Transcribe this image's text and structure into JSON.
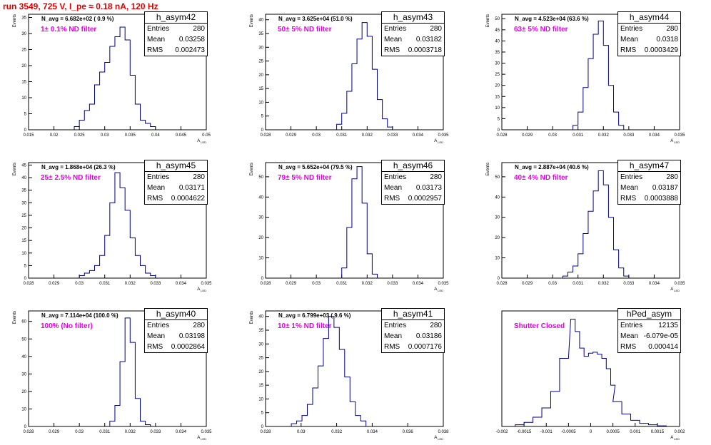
{
  "title": "run 3549,   725 V, I_pe ≈ 0.18 nA, 120 Hz",
  "chart_data": [
    {
      "type": "histogram",
      "name": "h_asym42",
      "stats": {
        "entries": "280",
        "mean": "0.03258",
        "rms": "0.002473"
      },
      "stat_labels": {
        "entries": "Entries",
        "mean": "Mean",
        "rms": "RMS"
      },
      "navg_label": "N_avg = 6.682e+02 ( 0.9 %)",
      "filter_label": "1± 0.1% ND filter",
      "xlabel": "A_LED",
      "ylabel": "Events",
      "xlim": [
        0.015,
        0.05
      ],
      "ylim": [
        0,
        36
      ],
      "xticks": [
        "0.015",
        "0.02",
        "0.025",
        "0.03",
        "0.035",
        "0.04",
        "0.045",
        "0.05"
      ],
      "yticks": [
        "0",
        "5",
        "10",
        "15",
        "20",
        "25",
        "30",
        "35"
      ],
      "bins": [
        0.0245,
        0.0255,
        0.0265,
        0.0275,
        0.0285,
        0.0295,
        0.0305,
        0.0315,
        0.0325,
        0.0335,
        0.0345,
        0.0355,
        0.0365,
        0.0375,
        0.0385,
        0.0395
      ],
      "counts": [
        1,
        3,
        6,
        8,
        14,
        18,
        21,
        26,
        29,
        32,
        28,
        17,
        8,
        3,
        2,
        1
      ]
    },
    {
      "type": "histogram",
      "name": "h_asym43",
      "stats": {
        "entries": "280",
        "mean": "0.03182",
        "rms": "0.0003718"
      },
      "stat_labels": {
        "entries": "Entries",
        "mean": "Mean",
        "rms": "RMS"
      },
      "navg_label": "N_avg = 3.625e+04 (51.0 %)",
      "filter_label": "50± 5% ND filter",
      "xlabel": "A_LED",
      "ylabel": "Events",
      "xlim": [
        0.028,
        0.035
      ],
      "ylim": [
        0,
        42
      ],
      "xticks": [
        "0.028",
        "0.029",
        "0.03",
        "0.031",
        "0.032",
        "0.033",
        "0.034",
        "0.035"
      ],
      "yticks": [
        "0",
        "5",
        "10",
        "15",
        "20",
        "25",
        "30",
        "35",
        "40"
      ],
      "bins": [
        0.0309,
        0.0311,
        0.0313,
        0.0315,
        0.0317,
        0.0319,
        0.0321,
        0.0323,
        0.0325,
        0.0327,
        0.0329
      ],
      "counts": [
        2,
        6,
        14,
        24,
        33,
        39,
        34,
        22,
        11,
        4,
        1
      ]
    },
    {
      "type": "histogram",
      "name": "h_asym44",
      "stats": {
        "entries": "280",
        "mean": "0.0318",
        "rms": "0.0003429"
      },
      "stat_labels": {
        "entries": "Entries",
        "mean": "Mean",
        "rms": "RMS"
      },
      "navg_label": "N_avg = 4.523e+04 (63.6 %)",
      "filter_label": "63± 5% ND filter",
      "xlabel": "A_LED",
      "ylabel": "Events",
      "xlim": [
        0.028,
        0.035
      ],
      "ylim": [
        0,
        52
      ],
      "xticks": [
        "0.028",
        "0.029",
        "0.03",
        "0.031",
        "0.032",
        "0.033",
        "0.034",
        "0.035"
      ],
      "yticks": [
        "0",
        "5",
        "10",
        "15",
        "20",
        "25",
        "30",
        "35",
        "40",
        "45",
        "50"
      ],
      "bins": [
        0.0309,
        0.0311,
        0.0313,
        0.0315,
        0.0317,
        0.0319,
        0.0321,
        0.0323,
        0.0325,
        0.0327
      ],
      "counts": [
        2,
        8,
        19,
        32,
        43,
        49,
        38,
        20,
        8,
        2
      ]
    },
    {
      "type": "histogram",
      "name": "h_asym45",
      "stats": {
        "entries": "280",
        "mean": "0.03171",
        "rms": "0.0004622"
      },
      "stat_labels": {
        "entries": "Entries",
        "mean": "Mean",
        "rms": "RMS"
      },
      "navg_label": "N_avg = 1.868e+04 (26.3 %)",
      "filter_label": "25± 2.5% ND filter",
      "xlabel": "A_LED",
      "ylabel": "Events",
      "xlim": [
        0.028,
        0.035
      ],
      "ylim": [
        0,
        46
      ],
      "xticks": [
        "0.028",
        "0.029",
        "0.03",
        "0.031",
        "0.032",
        "0.033",
        "0.034",
        "0.035"
      ],
      "yticks": [
        "0",
        "5",
        "10",
        "15",
        "20",
        "25",
        "30",
        "35",
        "40",
        "45"
      ],
      "bins": [
        0.0301,
        0.0303,
        0.0305,
        0.0307,
        0.0309,
        0.0311,
        0.0313,
        0.0315,
        0.0317,
        0.0319,
        0.0321,
        0.0323,
        0.0325,
        0.0327,
        0.0329
      ],
      "counts": [
        1,
        2,
        3,
        5,
        9,
        17,
        30,
        42,
        36,
        27,
        16,
        9,
        5,
        2,
        1
      ]
    },
    {
      "type": "histogram",
      "name": "h_asym46",
      "stats": {
        "entries": "280",
        "mean": "0.03173",
        "rms": "0.0002957"
      },
      "stat_labels": {
        "entries": "Entries",
        "mean": "Mean",
        "rms": "RMS"
      },
      "navg_label": "N_avg = 5.652e+04 (79.5 %)",
      "filter_label": "79± 5% ND filter",
      "xlabel": "A_LED",
      "ylabel": "Events",
      "xlim": [
        0.028,
        0.035
      ],
      "ylim": [
        0,
        57
      ],
      "xticks": [
        "0.028",
        "0.029",
        "0.03",
        "0.031",
        "0.032",
        "0.033",
        "0.034",
        "0.035"
      ],
      "yticks": [
        "0",
        "10",
        "20",
        "30",
        "40",
        "50"
      ],
      "bins": [
        0.0311,
        0.0313,
        0.0315,
        0.0317,
        0.0319,
        0.0321,
        0.0323
      ],
      "counts": [
        5,
        25,
        49,
        55,
        37,
        12,
        2
      ]
    },
    {
      "type": "histogram",
      "name": "h_asym47",
      "stats": {
        "entries": "280",
        "mean": "0.03187",
        "rms": "0.0003888"
      },
      "stat_labels": {
        "entries": "Entries",
        "mean": "Mean",
        "rms": "RMS"
      },
      "navg_label": "N_avg = 2.887e+04 (40.6 %)",
      "filter_label": "40± 4% ND filter",
      "xlabel": "A_LED",
      "ylabel": "Events",
      "xlim": [
        0.028,
        0.035
      ],
      "ylim": [
        0,
        57
      ],
      "xticks": [
        "0.028",
        "0.029",
        "0.03",
        "0.031",
        "0.032",
        "0.033",
        "0.034",
        "0.035"
      ],
      "yticks": [
        "0",
        "10",
        "20",
        "30",
        "40",
        "50"
      ],
      "bins": [
        0.0305,
        0.0307,
        0.0309,
        0.0311,
        0.0313,
        0.0315,
        0.0317,
        0.0319,
        0.0321,
        0.0323,
        0.0325,
        0.0327,
        0.0329
      ],
      "counts": [
        1,
        3,
        6,
        12,
        22,
        33,
        43,
        53,
        46,
        30,
        14,
        5,
        1
      ]
    },
    {
      "type": "histogram",
      "name": "h_asym40",
      "stats": {
        "entries": "280",
        "mean": "0.03198",
        "rms": "0.0002864"
      },
      "stat_labels": {
        "entries": "Entries",
        "mean": "Mean",
        "rms": "RMS"
      },
      "navg_label": "N_avg = 7.114e+04 (100.0 %)",
      "filter_label": "100% (No filter)",
      "xlabel": "A_LED",
      "ylabel": "Events",
      "xlim": [
        0.028,
        0.035
      ],
      "ylim": [
        0,
        66
      ],
      "xticks": [
        "0.028",
        "0.029",
        "0.03",
        "0.031",
        "0.032",
        "0.033",
        "0.034",
        "0.035"
      ],
      "yticks": [
        "0",
        "10",
        "20",
        "30",
        "40",
        "50",
        "60"
      ],
      "bins": [
        0.0313,
        0.0315,
        0.0317,
        0.0319,
        0.0321,
        0.0323,
        0.0325,
        0.0327
      ],
      "counts": [
        3,
        12,
        37,
        62,
        48,
        16,
        3,
        1
      ]
    },
    {
      "type": "histogram",
      "name": "h_asym41",
      "stats": {
        "entries": "280",
        "mean": "0.03186",
        "rms": "0.0007176"
      },
      "stat_labels": {
        "entries": "Entries",
        "mean": "Mean",
        "rms": "RMS"
      },
      "navg_label": "N_avg = 6.799e+03 ( 9.6 %)",
      "filter_label": "10± 1% ND filter",
      "xlabel": "A_LED",
      "ylabel": "Events",
      "xlim": [
        0.028,
        0.038
      ],
      "ylim": [
        0,
        42
      ],
      "xticks": [
        "0.028",
        "0.03",
        "0.032",
        "0.034",
        "0.036",
        "0.038"
      ],
      "yticks": [
        "0",
        "5",
        "10",
        "15",
        "20",
        "25",
        "30",
        "35",
        "40"
      ],
      "bins": [
        0.0296,
        0.0299,
        0.0302,
        0.0305,
        0.0308,
        0.0311,
        0.0314,
        0.0317,
        0.032,
        0.0323,
        0.0326,
        0.0329,
        0.0332,
        0.0335
      ],
      "counts": [
        1,
        2,
        4,
        8,
        14,
        22,
        32,
        40,
        36,
        28,
        18,
        9,
        4,
        2
      ]
    },
    {
      "type": "histogram",
      "name": "hPed_asym",
      "stats": {
        "entries": "12135",
        "mean": "-6.079e-05",
        "rms": "0.000414"
      },
      "stat_labels": {
        "entries": "Entries",
        "mean": "Mean",
        "rms": "RMS"
      },
      "navg_label": "",
      "filter_label": "Shutter Closed",
      "xlabel": "A_LED",
      "ylabel": "",
      "xlim": [
        -0.002,
        0.002
      ],
      "ylim": [
        0,
        560
      ],
      "xticks": [
        "-0.002",
        "-0.0015",
        "-0.001",
        "-0.0005",
        "0",
        "0.0005",
        "0.001",
        "0.0015",
        "0.002"
      ],
      "yticks": [],
      "bins": [
        -0.0016,
        -0.0014,
        -0.0012,
        -0.001,
        -0.0008,
        -0.0006,
        -0.0004,
        -0.0003,
        -0.0002,
        -0.0001,
        0.0,
        0.0001,
        0.0002,
        0.0003,
        0.0004,
        0.0005,
        0.0006,
        0.0008,
        0.001,
        0.0012,
        0.0014,
        0.0016
      ],
      "counts": [
        8,
        20,
        45,
        90,
        170,
        330,
        520,
        460,
        380,
        340,
        355,
        360,
        350,
        330,
        280,
        200,
        120,
        60,
        30,
        15,
        8,
        3
      ]
    }
  ]
}
